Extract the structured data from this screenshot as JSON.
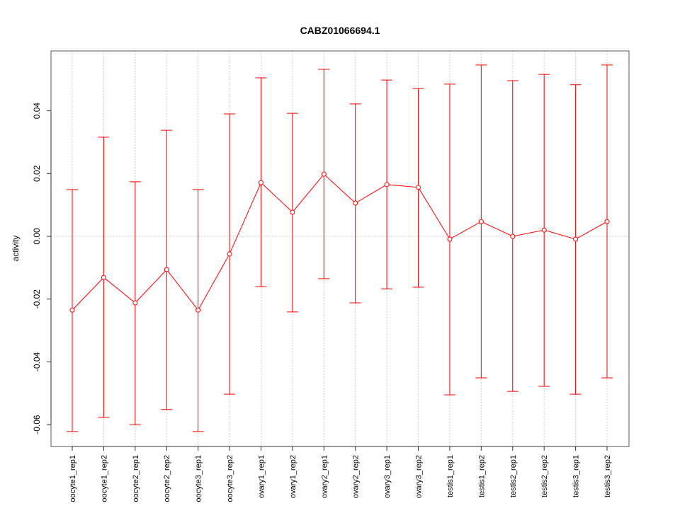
{
  "chart_data": {
    "type": "line",
    "title": "CABZ01066694.1",
    "xlabel": "",
    "ylabel": "activity",
    "ylim": [
      -0.067,
      0.059
    ],
    "yticks": [
      -0.06,
      -0.04,
      -0.02,
      0.0,
      0.02,
      0.04
    ],
    "ytick_labels": [
      "-0.06",
      "-0.04",
      "-0.02",
      "0.00",
      "0.02",
      "0.04"
    ],
    "grid": true,
    "categories": [
      "oocyte1_rep1",
      "oocyte1_rep2",
      "oocyte2_rep1",
      "oocyte2_rep2",
      "oocyte3_rep1",
      "oocyte3_rep2",
      "ovary1_rep1",
      "ovary1_rep2",
      "ovary2_rep1",
      "ovary2_rep2",
      "ovary3_rep1",
      "ovary3_rep2",
      "testis1_rep1",
      "testis1_rep2",
      "testis2_rep1",
      "testis2_rep2",
      "testis3_rep1",
      "testis3_rep2"
    ],
    "values": [
      -0.0235,
      -0.0131,
      -0.0212,
      -0.0106,
      -0.0235,
      -0.0056,
      0.0171,
      0.0077,
      0.0198,
      0.0106,
      0.0165,
      0.0156,
      -0.0009,
      0.0047,
      0.0,
      0.002,
      -0.0009,
      0.0047
    ],
    "upper": [
      0.0149,
      0.0316,
      0.0174,
      0.0338,
      0.0149,
      0.039,
      0.0505,
      0.0392,
      0.0532,
      0.0422,
      0.0498,
      0.0471,
      0.0485,
      0.0546,
      0.0496,
      0.0516,
      0.0483,
      0.0546
    ],
    "lower": [
      -0.0622,
      -0.0577,
      -0.06,
      -0.0552,
      -0.0622,
      -0.0503,
      -0.016,
      -0.0241,
      -0.0135,
      -0.0212,
      -0.0167,
      -0.0162,
      -0.0505,
      -0.0451,
      -0.0494,
      -0.0478,
      -0.0503,
      -0.0451
    ],
    "color": "#ff0000"
  }
}
